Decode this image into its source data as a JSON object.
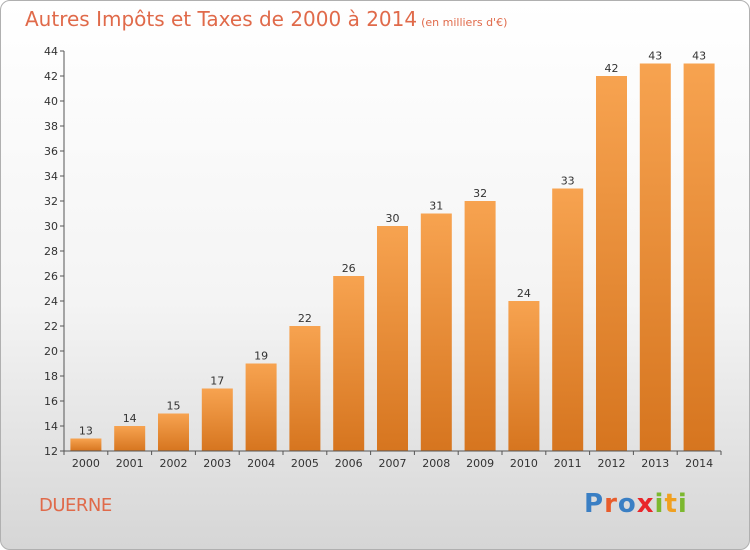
{
  "header": {
    "title": "Autres Impôts et Taxes de 2000 à 2014",
    "unit": "(en milliers d'€)"
  },
  "footer": {
    "commune": "DUERNE",
    "logo_text": "Proxiti"
  },
  "colors": {
    "title": "#e06a4a",
    "bar_top": "#f7a350",
    "bar_bottom": "#d6751f",
    "axis": "#555555",
    "logo": [
      "#3a7fc4",
      "#e85c2b",
      "#3a7fc4",
      "#e9262a",
      "#7cb82f",
      "#f0a020",
      "#7cb82f"
    ]
  },
  "chart_data": {
    "type": "bar",
    "title": "Autres Impôts et Taxes de 2000 à 2014",
    "subtitle": "(en milliers d'€)",
    "categories": [
      "2000",
      "2001",
      "2002",
      "2003",
      "2004",
      "2005",
      "2006",
      "2007",
      "2008",
      "2009",
      "2010",
      "2011",
      "2012",
      "2013",
      "2014"
    ],
    "values": [
      13,
      14,
      15,
      17,
      19,
      22,
      26,
      30,
      31,
      32,
      24,
      33,
      42,
      43,
      43
    ],
    "data_labels": [
      "13",
      "14",
      "15",
      "17",
      "19",
      "22",
      "26",
      "30",
      "31",
      "32",
      "24",
      "33",
      "42",
      "43",
      "43"
    ],
    "ylim": [
      12,
      44
    ],
    "yticks": [
      12,
      14,
      16,
      18,
      20,
      22,
      24,
      26,
      28,
      30,
      32,
      34,
      36,
      38,
      40,
      42,
      44
    ],
    "grid": false
  }
}
